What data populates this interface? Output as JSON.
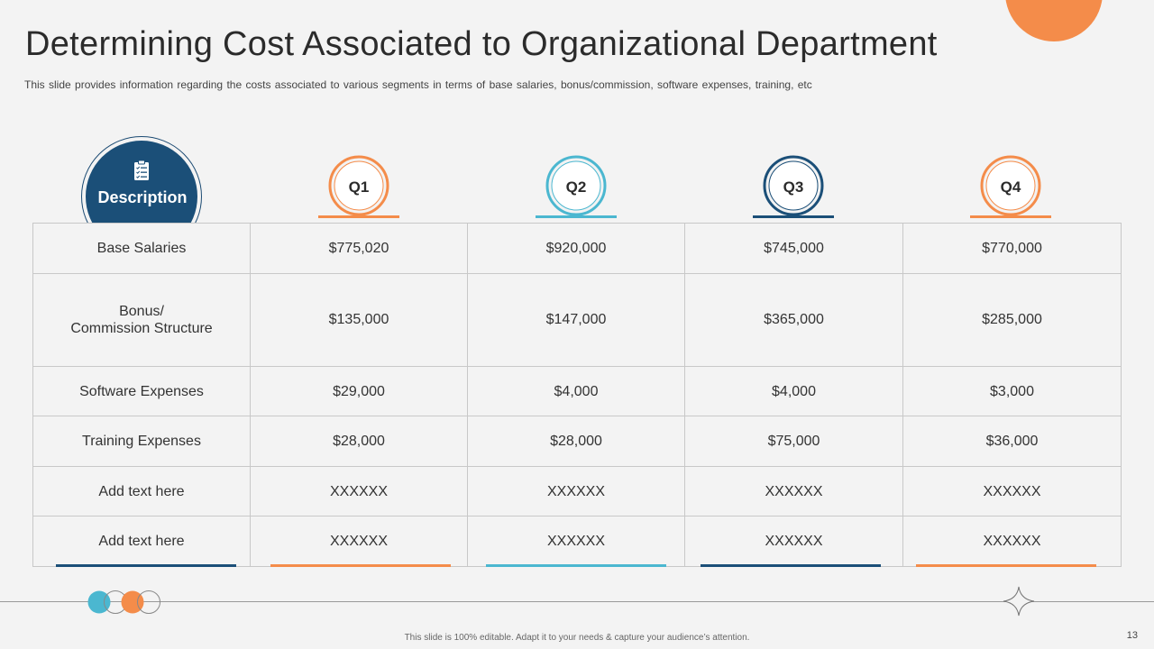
{
  "slide": {
    "title": "Determining Cost Associated to Organizational Department",
    "subtitle": "This slide provides information regarding the costs associated to various segments in terms of base salaries, bonus/commission, software expenses, training, etc",
    "footer": "This slide is 100% editable. Adapt it to your needs & capture your audience’s attention.",
    "page_number": "13"
  },
  "colors": {
    "orange": "#f48c4a",
    "teal": "#4bb7d0",
    "navy": "#1b4f78"
  },
  "header": {
    "description_label": "Description",
    "description_icon": "clipboard-checklist-icon",
    "quarters": [
      {
        "label": "Q1",
        "color": "#f48c4a"
      },
      {
        "label": "Q2",
        "color": "#4bb7d0"
      },
      {
        "label": "Q3",
        "color": "#1b4f78"
      },
      {
        "label": "Q4",
        "color": "#f48c4a"
      }
    ]
  },
  "table": {
    "rows": [
      {
        "label": "Base Salaries",
        "values": [
          "$775,020",
          "$920,000",
          "$745,000",
          "$770,000"
        ]
      },
      {
        "label": "Bonus/\nCommission Structure",
        "values": [
          "$135,000",
          "$147,000",
          "$365,000",
          "$285,000"
        ]
      },
      {
        "label": "Software Expenses",
        "values": [
          "$29,000",
          "$4,000",
          "$4,000",
          "$3,000"
        ]
      },
      {
        "label": "Training Expenses",
        "values": [
          "$28,000",
          "$28,000",
          "$75,000",
          "$36,000"
        ]
      },
      {
        "label": "Add text here",
        "values": [
          "XXXXXX",
          "XXXXXX",
          "XXXXXX",
          "XXXXXX"
        ]
      },
      {
        "label": "Add text here",
        "values": [
          "XXXXXX",
          "XXXXXX",
          "XXXXXX",
          "XXXXXX"
        ]
      }
    ]
  },
  "column_underline_colors": [
    "#1b4f78",
    "#f48c4a",
    "#4bb7d0",
    "#1b4f78",
    "#f48c4a"
  ]
}
